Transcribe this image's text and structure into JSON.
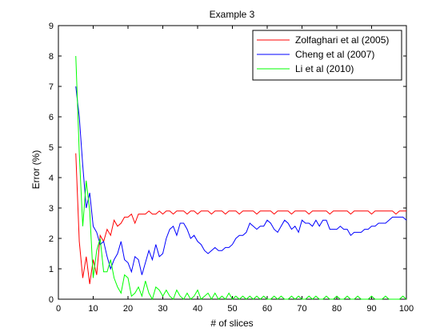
{
  "chart_data": {
    "type": "line",
    "title": "Example 3",
    "xlabel": "# of slices",
    "ylabel": "Error (%)",
    "xlim": [
      0,
      100
    ],
    "ylim": [
      0,
      9
    ],
    "xticks": [
      "0",
      "10",
      "20",
      "30",
      "40",
      "50",
      "60",
      "70",
      "80",
      "90",
      "100"
    ],
    "yticks": [
      "0",
      "1",
      "2",
      "3",
      "4",
      "5",
      "6",
      "7",
      "8",
      "9"
    ],
    "grid": false,
    "legend_position": "top-right",
    "series": [
      {
        "name": "Zolfaghari et al (2005)",
        "color": "#ff0000",
        "x": [
          5,
          6,
          7,
          8,
          9,
          10,
          11,
          12,
          13,
          14,
          15,
          16,
          17,
          18,
          19,
          20,
          21,
          22,
          23,
          24,
          25,
          26,
          27,
          28,
          29,
          30,
          31,
          32,
          33,
          34,
          35,
          36,
          37,
          38,
          39,
          40,
          41,
          42,
          43,
          44,
          45,
          46,
          47,
          48,
          49,
          50,
          51,
          52,
          53,
          54,
          55,
          56,
          57,
          58,
          59,
          60,
          61,
          62,
          63,
          64,
          65,
          66,
          67,
          68,
          69,
          70,
          71,
          72,
          73,
          74,
          75,
          76,
          77,
          78,
          79,
          80,
          81,
          82,
          83,
          84,
          85,
          86,
          87,
          88,
          89,
          90,
          91,
          92,
          93,
          94,
          95,
          96,
          97,
          98,
          99,
          100
        ],
        "values": [
          4.8,
          1.9,
          0.7,
          1.4,
          0.5,
          1.3,
          0.8,
          2.1,
          1.9,
          2.3,
          2.1,
          2.6,
          2.4,
          2.5,
          2.7,
          2.7,
          2.8,
          2.5,
          2.8,
          2.8,
          2.8,
          2.9,
          2.8,
          2.8,
          2.9,
          2.8,
          2.9,
          2.9,
          2.8,
          2.9,
          2.9,
          2.9,
          2.8,
          2.9,
          2.9,
          2.8,
          2.9,
          2.9,
          2.9,
          2.8,
          2.9,
          2.9,
          2.9,
          2.8,
          2.9,
          2.9,
          2.9,
          2.8,
          2.9,
          2.9,
          2.9,
          2.9,
          2.8,
          2.9,
          2.9,
          2.9,
          2.9,
          2.8,
          2.9,
          2.9,
          2.9,
          2.9,
          2.8,
          2.9,
          2.9,
          2.9,
          2.9,
          2.8,
          2.9,
          2.9,
          2.9,
          2.9,
          2.9,
          2.8,
          2.9,
          2.9,
          2.9,
          2.9,
          2.9,
          2.8,
          2.9,
          2.9,
          2.9,
          2.9,
          2.9,
          2.8,
          2.9,
          2.9,
          2.9,
          2.9,
          2.9,
          2.9,
          2.8,
          2.9,
          2.9,
          2.9
        ]
      },
      {
        "name": "Cheng et al (2007)",
        "color": "#0000ff",
        "x": [
          5,
          6,
          7,
          8,
          9,
          10,
          11,
          12,
          13,
          14,
          15,
          16,
          17,
          18,
          19,
          20,
          21,
          22,
          23,
          24,
          25,
          26,
          27,
          28,
          29,
          30,
          31,
          32,
          33,
          34,
          35,
          36,
          37,
          38,
          39,
          40,
          41,
          42,
          43,
          44,
          45,
          46,
          47,
          48,
          49,
          50,
          51,
          52,
          53,
          54,
          55,
          56,
          57,
          58,
          59,
          60,
          61,
          62,
          63,
          64,
          65,
          66,
          67,
          68,
          69,
          70,
          71,
          72,
          73,
          74,
          75,
          76,
          77,
          78,
          79,
          80,
          81,
          82,
          83,
          84,
          85,
          86,
          87,
          88,
          89,
          90,
          91,
          92,
          93,
          94,
          95,
          96,
          97,
          98,
          99,
          100
        ],
        "values": [
          7.0,
          6.0,
          4.4,
          3.0,
          3.5,
          2.4,
          2.2,
          1.8,
          1.9,
          1.4,
          1.0,
          1.3,
          1.5,
          1.9,
          1.3,
          1.2,
          0.9,
          1.4,
          1.3,
          0.8,
          1.2,
          1.6,
          1.3,
          1.8,
          1.4,
          1.5,
          2.0,
          2.3,
          2.4,
          2.1,
          2.5,
          2.5,
          2.3,
          2.0,
          2.1,
          1.9,
          1.8,
          1.6,
          1.5,
          1.6,
          1.7,
          1.6,
          1.6,
          1.7,
          1.7,
          1.8,
          2.0,
          2.1,
          2.1,
          2.2,
          2.5,
          2.4,
          2.3,
          2.4,
          2.4,
          2.6,
          2.5,
          2.3,
          2.2,
          2.4,
          2.6,
          2.5,
          2.3,
          2.4,
          2.2,
          2.6,
          2.5,
          2.5,
          2.4,
          2.6,
          2.4,
          2.6,
          2.6,
          2.3,
          2.3,
          2.3,
          2.4,
          2.3,
          2.3,
          2.1,
          2.2,
          2.2,
          2.2,
          2.3,
          2.3,
          2.4,
          2.4,
          2.5,
          2.5,
          2.5,
          2.6,
          2.7,
          2.7,
          2.7,
          2.7,
          2.6
        ]
      },
      {
        "name": "Li et al (2010)",
        "color": "#00ff00",
        "x": [
          5,
          6,
          7,
          8,
          9,
          10,
          11,
          12,
          13,
          14,
          15,
          16,
          17,
          18,
          19,
          20,
          21,
          22,
          23,
          24,
          25,
          26,
          27,
          28,
          29,
          30,
          31,
          32,
          33,
          34,
          35,
          36,
          37,
          38,
          39,
          40,
          41,
          42,
          43,
          44,
          45,
          46,
          47,
          48,
          49,
          50,
          51,
          52,
          53,
          54,
          55,
          56,
          57,
          58,
          59,
          60,
          61,
          62,
          63,
          64,
          65,
          66,
          67,
          68,
          69,
          70,
          71,
          72,
          73,
          74,
          75,
          76,
          77,
          78,
          79,
          80,
          81,
          82,
          83,
          84,
          85,
          86,
          87,
          88,
          89,
          90,
          91,
          92,
          93,
          94,
          95,
          96,
          97,
          98,
          99,
          100
        ],
        "values": [
          8.0,
          4.8,
          2.4,
          3.9,
          2.9,
          0.7,
          1.6,
          2.0,
          0.9,
          0.9,
          1.3,
          0.7,
          0.4,
          0.2,
          0.8,
          0.7,
          0.1,
          0.2,
          0.4,
          0.1,
          0.6,
          0.2,
          0.0,
          0.4,
          0.3,
          0.1,
          0.3,
          0.1,
          0.0,
          0.3,
          0.1,
          0.0,
          0.2,
          0.0,
          0.1,
          0.3,
          0.0,
          0.1,
          0.2,
          0.0,
          0.2,
          0.0,
          0.1,
          0.0,
          0.2,
          0.0,
          0.1,
          0.0,
          0.1,
          0.0,
          0.1,
          0.0,
          0.1,
          0.0,
          0.1,
          0.0,
          0.0,
          0.1,
          0.0,
          0.1,
          0.0,
          0.0,
          0.1,
          0.0,
          0.1,
          0.0,
          0.0,
          0.1,
          0.0,
          0.1,
          0.0,
          0.0,
          0.1,
          0.0,
          0.0,
          0.1,
          0.0,
          0.0,
          0.1,
          0.0,
          0.0,
          0.1,
          0.0,
          0.0,
          0.0,
          0.1,
          0.0,
          0.0,
          0.0,
          0.1,
          0.0,
          0.0,
          0.0,
          0.0,
          0.1,
          0.0
        ]
      }
    ]
  }
}
